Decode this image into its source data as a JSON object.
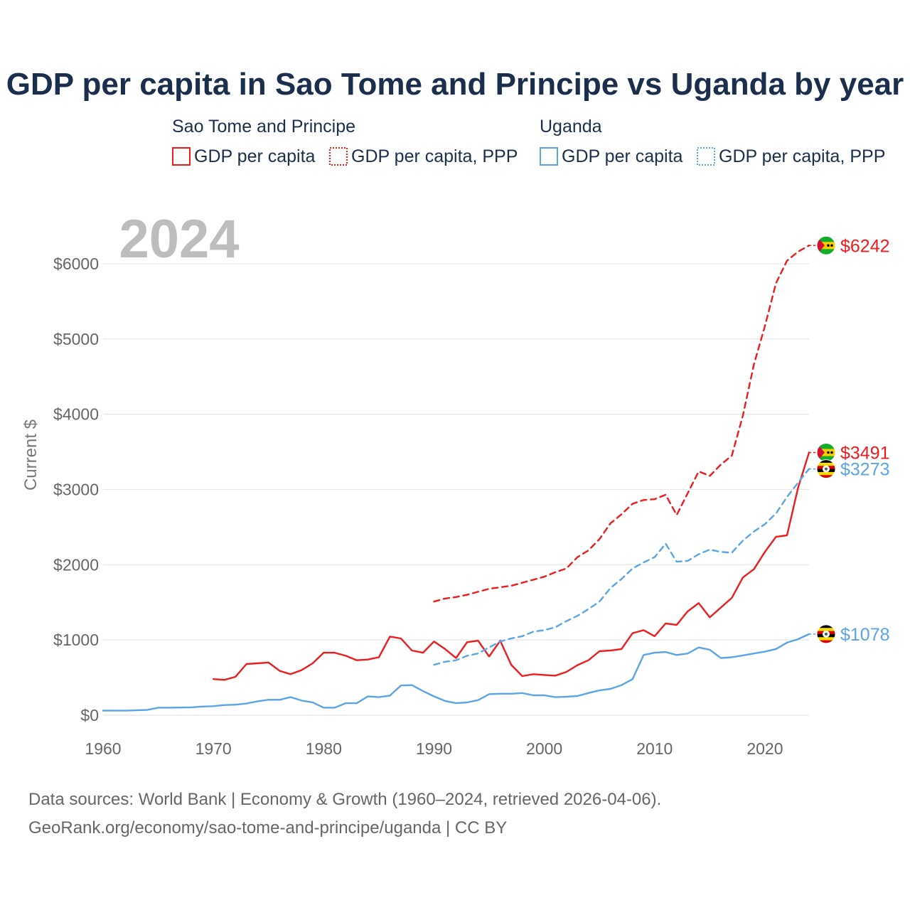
{
  "chart_data": {
    "type": "line",
    "title": "GDP per capita in Sao Tome and Principe vs Uganda by year",
    "ylabel": "Current $",
    "xlabel": "",
    "xlim": [
      1960,
      2024
    ],
    "ylim": [
      0,
      6500
    ],
    "x_ticks": [
      1960,
      1970,
      1980,
      1990,
      2000,
      2010,
      2020
    ],
    "x_tick_labels": [
      "1960",
      "1970",
      "1980",
      "1990",
      "2000",
      "2010",
      "2020"
    ],
    "y_ticks": [
      0,
      1000,
      2000,
      3000,
      4000,
      5000,
      6000
    ],
    "y_tick_labels": [
      "$0",
      "$1000",
      "$2000",
      "$3000",
      "$4000",
      "$5000",
      "$6000"
    ],
    "year_label": "2024",
    "legend": {
      "groups": [
        {
          "name": "Sao Tome and Principe",
          "items": [
            "GDP per capita",
            "GDP per capita, PPP"
          ]
        },
        {
          "name": "Uganda",
          "items": [
            "GDP per capita",
            "GDP per capita, PPP"
          ]
        }
      ]
    },
    "series": [
      {
        "name": "Sao Tome and Principe GDP per capita",
        "country": "Sao Tome and Principe",
        "style": "solid",
        "color": "#ee1c1c",
        "end_label": "$3491",
        "x": [
          1970,
          1971,
          1972,
          1973,
          1974,
          1975,
          1976,
          1977,
          1978,
          1979,
          1980,
          1981,
          1982,
          1983,
          1984,
          1985,
          1986,
          1987,
          1988,
          1989,
          1990,
          1991,
          1992,
          1993,
          1994,
          1995,
          1996,
          1997,
          1998,
          1999,
          2000,
          2001,
          2002,
          2003,
          2004,
          2005,
          2006,
          2007,
          2008,
          2009,
          2010,
          2011,
          2012,
          2013,
          2014,
          2015,
          2016,
          2017,
          2018,
          2019,
          2020,
          2021,
          2022,
          2023,
          2024
        ],
        "y": [
          480,
          470,
          510,
          680,
          690,
          700,
          590,
          545,
          600,
          690,
          830,
          830,
          790,
          730,
          740,
          770,
          1045,
          1020,
          860,
          830,
          980,
          880,
          760,
          970,
          990,
          780,
          990,
          670,
          520,
          545,
          535,
          525,
          575,
          665,
          730,
          850,
          860,
          880,
          1090,
          1130,
          1050,
          1220,
          1200,
          1380,
          1490,
          1300,
          1430,
          1560,
          1830,
          1940,
          2170,
          2370,
          2390,
          3020,
          3491
        ]
      },
      {
        "name": "Sao Tome and Principe GDP per capita, PPP",
        "country": "Sao Tome and Principe",
        "style": "dashed",
        "color": "#ee1c1c",
        "end_label": "$6242",
        "x": [
          1990,
          1991,
          1992,
          1993,
          1994,
          1995,
          1996,
          1997,
          1998,
          1999,
          2000,
          2001,
          2002,
          2003,
          2004,
          2005,
          2006,
          2007,
          2008,
          2009,
          2010,
          2011,
          2012,
          2013,
          2014,
          2015,
          2016,
          2017,
          2018,
          2019,
          2020,
          2021,
          2022,
          2023,
          2024
        ],
        "y": [
          1510,
          1550,
          1570,
          1600,
          1640,
          1680,
          1700,
          1720,
          1760,
          1800,
          1840,
          1900,
          1950,
          2100,
          2190,
          2340,
          2550,
          2670,
          2810,
          2860,
          2870,
          2930,
          2660,
          2950,
          3240,
          3180,
          3330,
          3450,
          3980,
          4660,
          5170,
          5740,
          6040,
          6160,
          6242
        ]
      },
      {
        "name": "Uganda GDP per capita",
        "country": "Uganda",
        "style": "solid",
        "color": "#5ba4e6",
        "end_label": "$1078",
        "x": [
          1960,
          1961,
          1962,
          1963,
          1964,
          1965,
          1966,
          1967,
          1968,
          1969,
          1970,
          1971,
          1972,
          1973,
          1974,
          1975,
          1976,
          1977,
          1978,
          1979,
          1980,
          1981,
          1982,
          1983,
          1984,
          1985,
          1986,
          1987,
          1988,
          1989,
          1990,
          1991,
          1992,
          1993,
          1994,
          1995,
          1996,
          1997,
          1998,
          1999,
          2000,
          2001,
          2002,
          2003,
          2004,
          2005,
          2006,
          2007,
          2008,
          2009,
          2010,
          2011,
          2012,
          2013,
          2014,
          2015,
          2016,
          2017,
          2018,
          2019,
          2020,
          2021,
          2022,
          2023,
          2024
        ],
        "y": [
          60,
          60,
          60,
          65,
          70,
          100,
          100,
          102,
          105,
          115,
          120,
          135,
          140,
          155,
          185,
          205,
          205,
          240,
          195,
          170,
          100,
          100,
          160,
          160,
          250,
          240,
          260,
          395,
          400,
          320,
          250,
          190,
          160,
          170,
          200,
          280,
          285,
          285,
          295,
          265,
          265,
          240,
          245,
          255,
          295,
          330,
          350,
          400,
          480,
          800,
          830,
          840,
          800,
          820,
          900,
          870,
          760,
          770,
          795,
          820,
          845,
          880,
          965,
          1010,
          1078
        ]
      },
      {
        "name": "Uganda GDP per capita, PPP",
        "country": "Uganda",
        "style": "dashed",
        "color": "#5ba4e6",
        "end_label": "$3273",
        "x": [
          1990,
          1991,
          1992,
          1993,
          1994,
          1995,
          1996,
          1997,
          1998,
          1999,
          2000,
          2001,
          2002,
          2003,
          2004,
          2005,
          2006,
          2007,
          2008,
          2009,
          2010,
          2011,
          2012,
          2013,
          2014,
          2015,
          2016,
          2017,
          2018,
          2019,
          2020,
          2021,
          2022,
          2023,
          2024
        ],
        "y": [
          670,
          710,
          730,
          790,
          820,
          900,
          980,
          1020,
          1050,
          1110,
          1130,
          1170,
          1250,
          1320,
          1410,
          1510,
          1690,
          1810,
          1950,
          2030,
          2100,
          2280,
          2040,
          2050,
          2140,
          2200,
          2170,
          2160,
          2320,
          2440,
          2540,
          2680,
          2900,
          3090,
          3273
        ]
      }
    ]
  },
  "footer": {
    "line1": "Data sources: World Bank | Economy & Growth (1960–2024, retrieved 2026-04-06).",
    "line2": "GeoRank.org/economy/sao-tome-and-principe/uganda | CC BY"
  },
  "colors": {
    "stp": "#ee1c1c",
    "uganda": "#5ba4e6",
    "title": "#1b2f4d"
  },
  "icons": {
    "stp_flag": "sao-tome-flag-icon",
    "uganda_flag": "uganda-flag-icon"
  }
}
